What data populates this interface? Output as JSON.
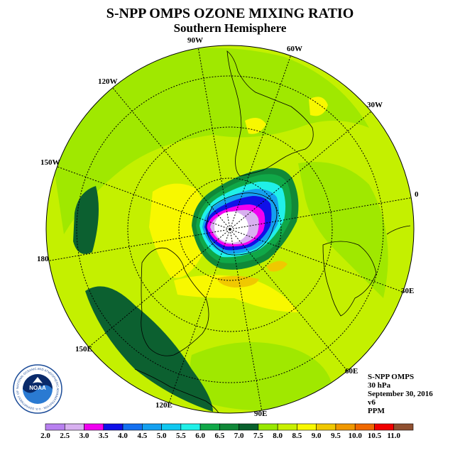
{
  "title": "S-NPP OMPS OZONE MIXING RATIO",
  "subtitle": "Southern Hemisphere",
  "longitude_labels": [
    "90W",
    "60W",
    "30W",
    "0",
    "30E",
    "60E",
    "90E",
    "120E",
    "150E",
    "180",
    "150W",
    "120W"
  ],
  "info": {
    "instrument": "S-NPP OMPS",
    "level": "30 hPa",
    "date": "September 30, 2016",
    "version": "v6",
    "units": "PPM"
  },
  "logo": {
    "text": "NOAA",
    "ring_text": "NATIONAL OCEANIC AND ATMOSPHERIC ADMINISTRATION · U.S. DEPARTMENT OF COMMERCE"
  },
  "colorbar": {
    "labels": [
      "2.0",
      "2.5",
      "3.0",
      "3.5",
      "4.0",
      "4.5",
      "5.0",
      "5.5",
      "6.0",
      "6.5",
      "7.0",
      "7.5",
      "8.0",
      "8.5",
      "9.0",
      "9.5",
      "10.0",
      "10.5",
      "11.0"
    ],
    "colors": [
      "#b880f0",
      "#d8b0f0",
      "#f000f0",
      "#1010e8",
      "#1470f0",
      "#14a0f0",
      "#10c8f0",
      "#20f0e8",
      "#10a848",
      "#108838",
      "#08602c",
      "#98e800",
      "#c8f000",
      "#f8f800",
      "#f0c800",
      "#f09800",
      "#f06800",
      "#f00000",
      "#905030"
    ]
  },
  "map_colors": {
    "ocean_field": "#c4f000",
    "band_7_5_8_0": "#a0e800",
    "band_8_0_8_5": "#f8f800",
    "band_8_5_9_0": "#f0c800",
    "band_7_0_7_5": "#0c6030",
    "vortex_edge": "#108838",
    "vortex_mid": "#10a848",
    "vortex_cyan": "#20f0e8",
    "vortex_blue": "#14a0f0",
    "vortex_deep": "#1010e8",
    "vortex_magenta": "#f000f0",
    "vortex_lilac": "#d8b0f0",
    "vortex_core": "#ffffff"
  }
}
